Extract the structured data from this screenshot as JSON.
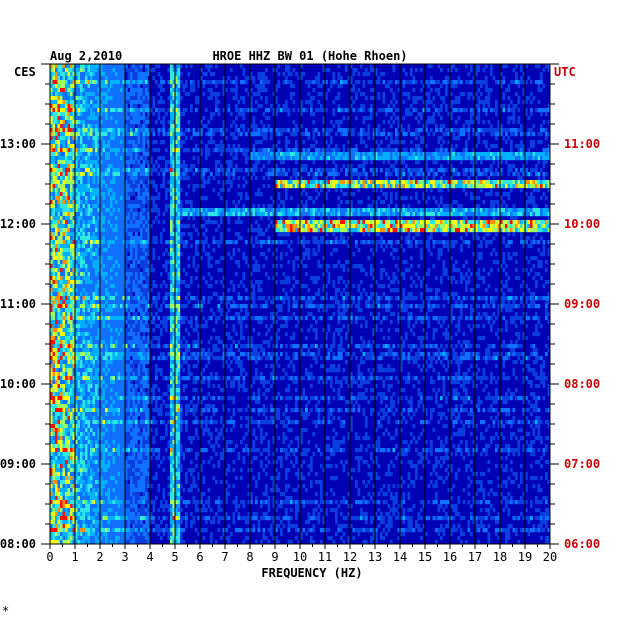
{
  "chart_data": {
    "type": "heatmap",
    "date": "Aug 2,2010",
    "title": "HROE HHZ BW 01 (Hohe Rhoen)",
    "left_zone": "CES",
    "right_zone": "UTC",
    "xlabel": "FREQUENCY (HZ)",
    "xlim": [
      0,
      20
    ],
    "x_ticks": [
      "0",
      "1",
      "2",
      "3",
      "4",
      "5",
      "6",
      "7",
      "8",
      "9",
      "10",
      "11",
      "12",
      "13",
      "14",
      "15",
      "16",
      "17",
      "18",
      "19",
      "20"
    ],
    "left_time_ticks": [
      "08:00",
      "09:00",
      "10:00",
      "11:00",
      "12:00",
      "13:00"
    ],
    "right_time_ticks": [
      "06:00",
      "07:00",
      "08:00",
      "09:00",
      "10:00",
      "11:00"
    ],
    "time_range_ces": [
      "08:00",
      "14:00"
    ],
    "colors": {
      "background": "#0000b4",
      "low": "#0a2fd0",
      "mid": "#00a8ff",
      "high": "#ffff00",
      "peak": "#ff0000",
      "utc_labels": "#cc0000",
      "grid": "#000000"
    },
    "features": [
      {
        "freq_range": [
          0,
          3
        ],
        "description_value": "broadband energy"
      },
      {
        "freq_range": [
          4.8,
          5.1
        ],
        "description_value": "persistent line"
      },
      {
        "freq_range": [
          9,
          20
        ],
        "time_ces": "12:30",
        "description_value": "band"
      },
      {
        "freq_range": [
          9,
          20
        ],
        "time_ces": "11:58",
        "description_value": "band"
      }
    ]
  },
  "footer_mark": "*"
}
